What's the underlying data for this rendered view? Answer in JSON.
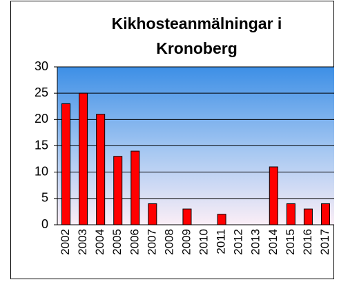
{
  "chart_data": {
    "type": "bar",
    "title": [
      "Kikhosteanmälningar i",
      "Kronoberg"
    ],
    "categories": [
      "2002",
      "2003",
      "2004",
      "2005",
      "2006",
      "2007",
      "2008",
      "2009",
      "2010",
      "2011",
      "2012",
      "2013",
      "2014",
      "2015",
      "2016",
      "2017"
    ],
    "values": [
      23,
      25,
      21,
      13,
      14,
      4,
      0,
      3,
      0,
      2,
      0,
      0,
      11,
      4,
      3,
      4
    ],
    "color": "#ff0000",
    "ylim": [
      0,
      30
    ],
    "yticks": [
      0,
      5,
      10,
      15,
      20,
      25,
      30
    ],
    "grid": true
  }
}
